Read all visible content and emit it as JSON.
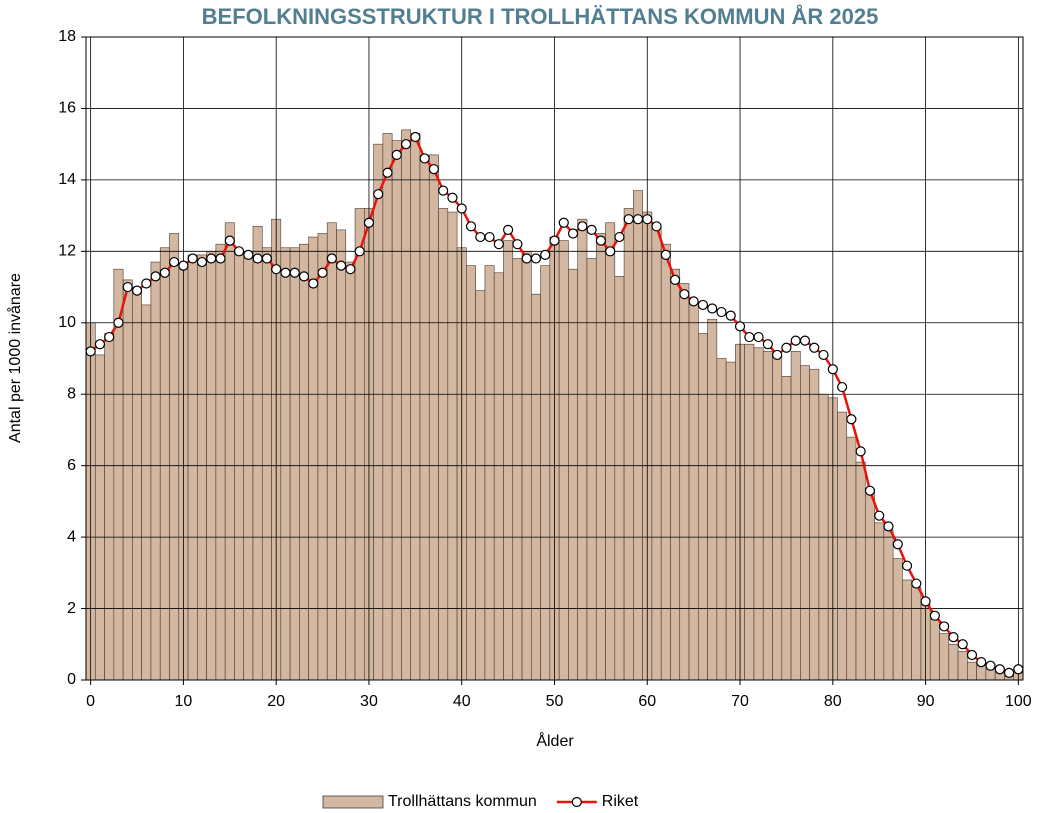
{
  "chart_data": {
    "type": "bar",
    "title": "BEFOLKNINGSSTRUKTUR I TROLLHÄTTANS KOMMUN ÅR 2025",
    "x_label": "Ålder",
    "y_label": "Antal per 1000 invånare",
    "x": [
      0,
      1,
      2,
      3,
      4,
      5,
      6,
      7,
      8,
      9,
      10,
      11,
      12,
      13,
      14,
      15,
      16,
      17,
      18,
      19,
      20,
      21,
      22,
      23,
      24,
      25,
      26,
      27,
      28,
      29,
      30,
      31,
      32,
      33,
      34,
      35,
      36,
      37,
      38,
      39,
      40,
      41,
      42,
      43,
      44,
      45,
      46,
      47,
      48,
      49,
      50,
      51,
      52,
      53,
      54,
      55,
      56,
      57,
      58,
      59,
      60,
      61,
      62,
      63,
      64,
      65,
      66,
      67,
      68,
      69,
      70,
      71,
      72,
      73,
      74,
      75,
      76,
      77,
      78,
      79,
      80,
      81,
      82,
      83,
      84,
      85,
      86,
      87,
      88,
      89,
      90,
      91,
      92,
      93,
      94,
      95,
      96,
      97,
      98,
      99,
      100
    ],
    "series": [
      {
        "name": "Trollhättans kommun",
        "type": "bar",
        "color": "#d3b7a0",
        "edge_color": "#4a3a30",
        "values": [
          10.0,
          9.1,
          9.7,
          11.5,
          11.2,
          11.0,
          10.5,
          11.7,
          12.1,
          12.5,
          11.5,
          11.9,
          11.9,
          12.0,
          12.2,
          12.8,
          12.0,
          11.8,
          12.7,
          12.1,
          12.9,
          12.1,
          12.1,
          12.2,
          12.4,
          12.5,
          12.8,
          12.6,
          11.7,
          13.2,
          13.2,
          15.0,
          15.3,
          15.1,
          15.4,
          15.3,
          14.7,
          14.7,
          13.2,
          13.1,
          12.1,
          11.6,
          10.9,
          11.6,
          11.4,
          12.3,
          11.8,
          12.0,
          10.8,
          11.6,
          12.4,
          12.3,
          11.5,
          12.9,
          11.8,
          12.5,
          12.8,
          11.3,
          13.2,
          13.7,
          13.1,
          12.7,
          12.2,
          11.5,
          11.1,
          10.6,
          9.7,
          10.1,
          9.0,
          8.9,
          9.4,
          9.4,
          9.3,
          9.2,
          9.1,
          8.5,
          9.2,
          8.8,
          8.7,
          8.0,
          7.9,
          7.5,
          6.8,
          6.1,
          5.3,
          4.4,
          4.2,
          3.4,
          2.8,
          2.6,
          2.1,
          1.7,
          1.3,
          1.0,
          0.8,
          0.5,
          0.4,
          0.3,
          0.2,
          0.1,
          0.2
        ]
      },
      {
        "name": "Riket",
        "type": "line",
        "color": "#e8140c",
        "marker_color": "#ffffff",
        "values": [
          9.2,
          9.4,
          9.6,
          10.0,
          11.0,
          10.9,
          11.1,
          11.3,
          11.4,
          11.7,
          11.6,
          11.8,
          11.7,
          11.8,
          11.8,
          12.3,
          12.0,
          11.9,
          11.8,
          11.8,
          11.5,
          11.4,
          11.4,
          11.3,
          11.1,
          11.4,
          11.8,
          11.6,
          11.5,
          12.0,
          12.8,
          13.6,
          14.2,
          14.7,
          15.0,
          15.2,
          14.6,
          14.3,
          13.7,
          13.5,
          13.2,
          12.7,
          12.4,
          12.4,
          12.2,
          12.6,
          12.2,
          11.8,
          11.8,
          11.9,
          12.3,
          12.8,
          12.5,
          12.7,
          12.6,
          12.3,
          12.0,
          12.4,
          12.9,
          12.9,
          12.9,
          12.7,
          11.9,
          11.2,
          10.8,
          10.6,
          10.5,
          10.4,
          10.3,
          10.2,
          9.9,
          9.6,
          9.6,
          9.4,
          9.1,
          9.3,
          9.5,
          9.5,
          9.3,
          9.1,
          8.7,
          8.2,
          7.3,
          6.4,
          5.3,
          4.6,
          4.3,
          3.8,
          3.2,
          2.7,
          2.2,
          1.8,
          1.5,
          1.2,
          1.0,
          0.7,
          0.5,
          0.4,
          0.3,
          0.2,
          0.3
        ]
      }
    ],
    "xlim": [
      -0.5,
      100.5
    ],
    "xticks": [
      0,
      10,
      20,
      30,
      40,
      50,
      60,
      70,
      80,
      90,
      100
    ],
    "ylim": [
      0,
      18
    ],
    "yticks": [
      0,
      2,
      4,
      6,
      8,
      10,
      12,
      14,
      16,
      18
    ],
    "grid": true,
    "legend": "bottom"
  }
}
